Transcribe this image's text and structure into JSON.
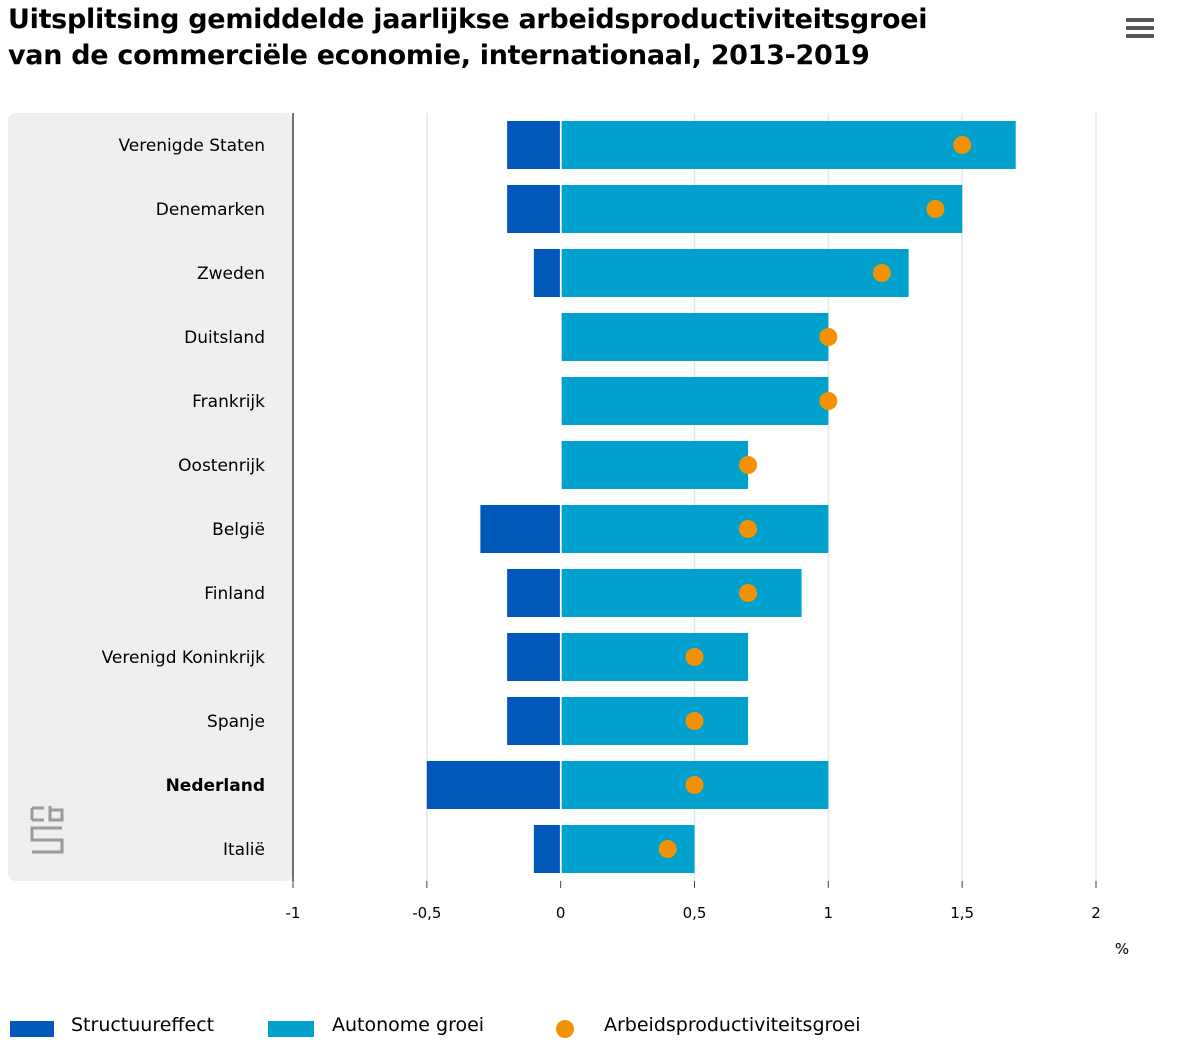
{
  "title_line1": "Uitsplitsing gemiddelde jaarlijkse arbeidsproductiviteitsgroei",
  "title_line2": "van de commerciële economie, internationaal, 2013-2019",
  "menu_icon": "hamburger-menu-icon",
  "logo": "cbs-logo",
  "colors": {
    "structuureffect": "#0058b8",
    "autonome": "#00a1cd",
    "arbeidsproductiviteit": "#f39200",
    "category_panel": "#efefef",
    "grid": "#e6e6e6"
  },
  "chart_data": {
    "type": "bar",
    "orientation": "horizontal",
    "stacked": true,
    "categories": [
      "Verenigde Staten",
      "Denemarken",
      "Zweden",
      "Duitsland",
      "Frankrijk",
      "Oostenrijk",
      "België",
      "Finland",
      "Verenigd Koninkrijk",
      "Spanje",
      "Nederland",
      "Italië"
    ],
    "highlighted_category": "Nederland",
    "series": [
      {
        "name": "Structuureffect",
        "type": "bar",
        "values": [
          -0.2,
          -0.2,
          -0.1,
          0,
          0,
          0,
          -0.3,
          -0.2,
          -0.2,
          -0.2,
          -0.5,
          -0.1
        ]
      },
      {
        "name": "Autonome groei",
        "type": "bar",
        "values": [
          1.7,
          1.5,
          1.3,
          1.0,
          1.0,
          0.7,
          1.0,
          0.9,
          0.7,
          0.7,
          1.0,
          0.5
        ]
      },
      {
        "name": "Arbeidsproductiviteitsgroei",
        "type": "scatter",
        "values": [
          1.5,
          1.4,
          1.2,
          1.0,
          1.0,
          0.7,
          0.7,
          0.7,
          0.5,
          0.5,
          0.5,
          0.4
        ]
      }
    ],
    "xlim": [
      -1,
      2
    ],
    "xticks": [
      -1,
      -0.5,
      0,
      0.5,
      1,
      1.5,
      2
    ],
    "xtick_labels": [
      "-1",
      "-0,5",
      "0",
      "0,5",
      "1",
      "1,5",
      "2"
    ],
    "xlabel": "%",
    "grid": true,
    "legend_position": "bottom-left"
  }
}
